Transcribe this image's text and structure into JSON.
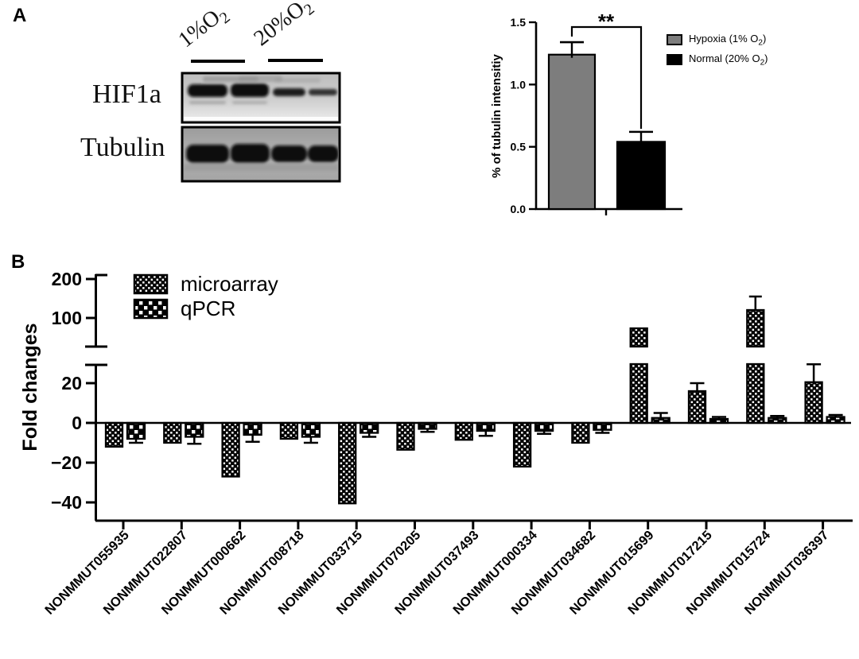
{
  "figure": {
    "panel_a_label": "A",
    "panel_b_label": "B",
    "blot": {
      "lane_labels": [
        {
          "text": "1%O",
          "sub": "2"
        },
        {
          "text": "20%O",
          "sub": "2"
        }
      ],
      "row_labels": [
        "HIF1a",
        "Tubulin"
      ]
    }
  },
  "chart_data": [
    {
      "id": "tubulin-intensity",
      "type": "bar",
      "title": "",
      "xlabel": "",
      "ylabel": "% of tubulin intensitiy",
      "ylim": [
        0,
        1.5
      ],
      "yticks": [
        "0.0",
        "0.5",
        "1.0",
        "1.5"
      ],
      "grid": false,
      "significance": "**",
      "legend_position": "right",
      "series": [
        {
          "name": "Hypoxia (1% O2)",
          "value": 1.24,
          "error": 0.1,
          "color": "#7d7d7d"
        },
        {
          "name": "Normal (20% O2)",
          "value": 0.54,
          "error": 0.08,
          "color": "#000000"
        }
      ],
      "legend": [
        {
          "pre": "Hypoxia (1% O",
          "sub": "2",
          "post": ")",
          "color": "#7d7d7d"
        },
        {
          "pre": "Normal (20% O",
          "sub": "2",
          "post": ")",
          "color": "#000000"
        }
      ]
    },
    {
      "id": "fold-changes",
      "type": "bar",
      "title": "",
      "xlabel": "",
      "ylabel": "Fold changes",
      "grid": false,
      "legend_position": "top-left",
      "axis_break": {
        "lower_range": [
          -45,
          30
        ],
        "upper_range": [
          30,
          210
        ]
      },
      "yticks": {
        "upper": [
          {
            "label": "200",
            "value": 200
          },
          {
            "label": "100",
            "value": 100
          }
        ],
        "lower": [
          {
            "label": "20",
            "value": 20
          },
          {
            "label": "0",
            "value": 0
          },
          {
            "label": "−20",
            "value": -20
          },
          {
            "label": "−40",
            "value": -40
          }
        ]
      },
      "categories": [
        "NONMMUT055935",
        "NONMMUT022807",
        "NONMMUT000662",
        "NONMMUT008718",
        "NONMMUT033715",
        "NONMMUT070205",
        "NONMMUT037493",
        "NONMMUT000334",
        "NONMMUT034682",
        "NONMMUT015699",
        "NONMMUT017215",
        "NONMMUT015724",
        "NONMMUT036397"
      ],
      "series": [
        {
          "name": "microarray",
          "pattern": "fine-check",
          "values": [
            -12,
            -10,
            -27,
            -8,
            -40.5,
            -13.5,
            -8.5,
            -22,
            -10,
            74,
            16,
            120,
            20.5
          ],
          "errors": [
            0,
            0,
            0,
            0,
            0,
            0,
            0,
            0,
            0,
            0,
            4,
            34,
            9
          ]
        },
        {
          "name": "qPCR",
          "pattern": "coarse-check",
          "values": [
            -8,
            -7,
            -6,
            -7,
            -5,
            -3,
            -4,
            -4,
            -3.5,
            2.5,
            2,
            2.5,
            3
          ],
          "errors": [
            2,
            3.5,
            3.5,
            3,
            2,
            1.5,
            2.5,
            1.5,
            1.5,
            2.5,
            1,
            1,
            1
          ]
        }
      ]
    }
  ]
}
